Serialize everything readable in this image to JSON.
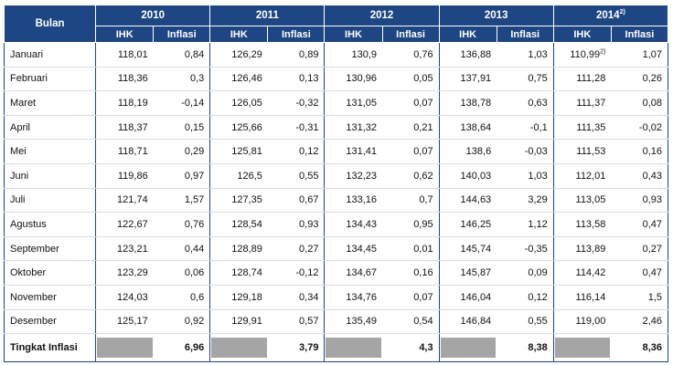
{
  "header": {
    "bulan": "Bulan",
    "years": [
      "2010",
      "2011",
      "2012",
      "2013",
      "2014"
    ],
    "year_2014_note": "2)",
    "ihk": "IHK",
    "inflasi": "Inflasi"
  },
  "rows": [
    {
      "month": "Januari",
      "values": [
        "118,01",
        "0,84",
        "126,29",
        "0,89",
        "130,9",
        "0,76",
        "136,88",
        "1,03",
        "110,99",
        "1,07"
      ],
      "note": "2)"
    },
    {
      "month": "Februari",
      "values": [
        "118,36",
        "0,3",
        "126,46",
        "0,13",
        "130,96",
        "0,05",
        "137,91",
        "0,75",
        "111,28",
        "0,26"
      ]
    },
    {
      "month": "Maret",
      "values": [
        "118,19",
        "-0,14",
        "126,05",
        "-0,32",
        "131,05",
        "0,07",
        "138,78",
        "0,63",
        "111,37",
        "0,08"
      ]
    },
    {
      "month": "April",
      "values": [
        "118,37",
        "0,15",
        "125,66",
        "-0,31",
        "131,32",
        "0,21",
        "138,64",
        "-0,1",
        "111,35",
        "-0,02"
      ]
    },
    {
      "month": "Mei",
      "values": [
        "118,71",
        "0,29",
        "125,81",
        "0,12",
        "131,41",
        "0,07",
        "138,6",
        "-0,03",
        "111,53",
        "0,16"
      ]
    },
    {
      "month": "Juni",
      "values": [
        "119,86",
        "0,97",
        "126,5",
        "0,55",
        "132,23",
        "0,62",
        "140,03",
        "1,03",
        "112,01",
        "0,43"
      ]
    },
    {
      "month": "Juli",
      "values": [
        "121,74",
        "1,57",
        "127,35",
        "0,67",
        "133,16",
        "0,7",
        "144,63",
        "3,29",
        "113,05",
        "0,93"
      ]
    },
    {
      "month": "Agustus",
      "values": [
        "122,67",
        "0,76",
        "128,54",
        "0,93",
        "134,43",
        "0,95",
        "146,25",
        "1,12",
        "113,58",
        "0,47"
      ]
    },
    {
      "month": "September",
      "values": [
        "123,21",
        "0,44",
        "128,89",
        "0,27",
        "134,45",
        "0,01",
        "145,74",
        "-0,35",
        "113,89",
        "0,27"
      ]
    },
    {
      "month": "Oktober",
      "values": [
        "123,29",
        "0,06",
        "128,74",
        "-0,12",
        "134,67",
        "0,16",
        "145,87",
        "0,09",
        "114,42",
        "0,47"
      ]
    },
    {
      "month": "November",
      "values": [
        "124,03",
        "0,6",
        "129,18",
        "0,34",
        "134,76",
        "0,07",
        "146,04",
        "0,12",
        "116,14",
        "1,5"
      ]
    },
    {
      "month": "Desember",
      "values": [
        "125,17",
        "0,92",
        "129,91",
        "0,57",
        "135,49",
        "0,54",
        "146,84",
        "0,55",
        "119,00",
        "2,46"
      ]
    }
  ],
  "total": {
    "label": "Tingkat Inflasi",
    "values": [
      "6,96",
      "3,79",
      "4,3",
      "8,38",
      "8,36"
    ]
  }
}
